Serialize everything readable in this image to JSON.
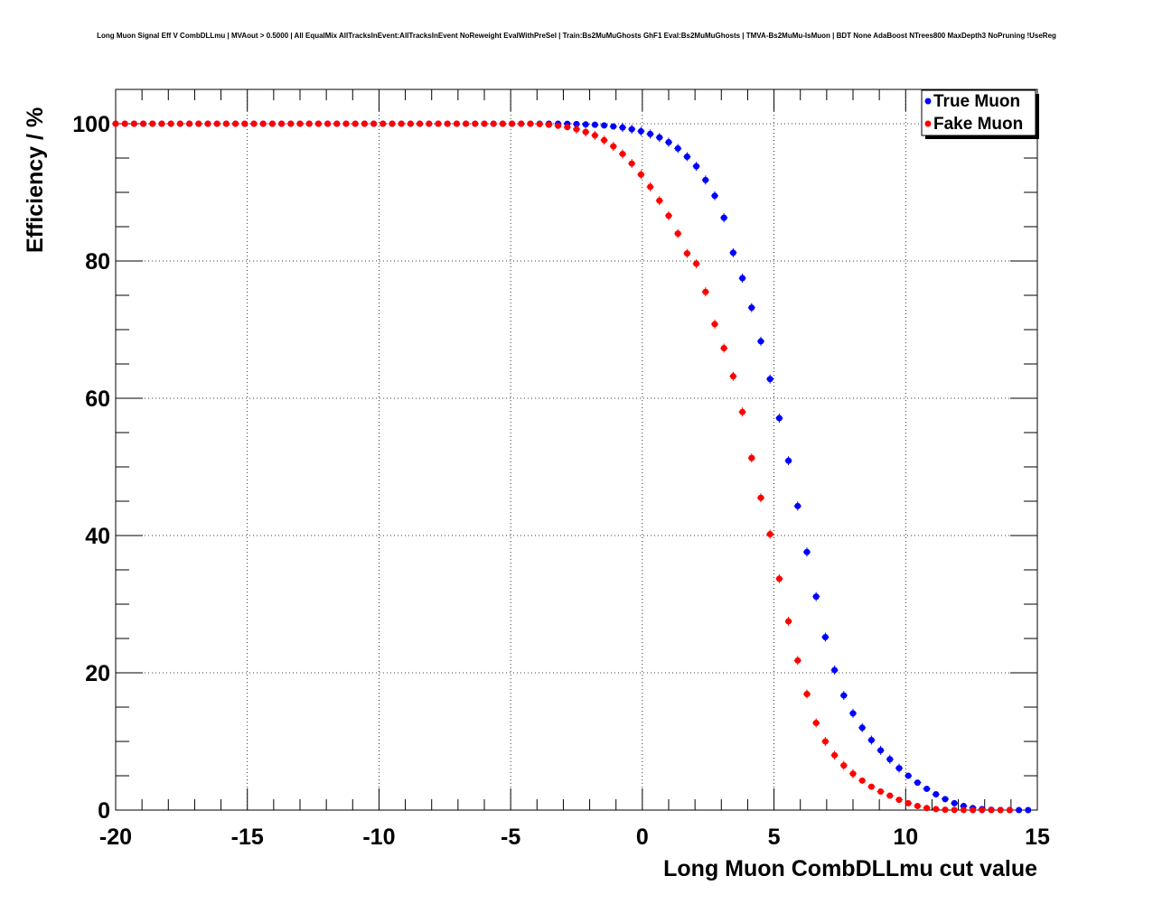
{
  "chart_data": {
    "type": "scatter",
    "title": "Long Muon Signal Eff V CombDLLmu | MVAout > 0.5000 | All EqualMix AllTracksInEvent:AllTracksInEvent NoReweight EvalWithPreSel | Train:Bs2MuMuGhosts GhF1 Eval:Bs2MuMuGhosts | TMVA-Bs2MuMu-IsMuon | BDT None AdaBoost NTrees800 MaxDepth3 NoPruning !UseReg",
    "xlabel": "Long Muon CombDLLmu cut value",
    "ylabel": "Efficiency / %",
    "xlim": [
      -20,
      15
    ],
    "ylim": [
      0,
      105
    ],
    "x_ticks": [
      -20,
      -15,
      -10,
      -5,
      0,
      5,
      10,
      15
    ],
    "x_tick_labels": [
      "-20",
      "-15",
      "-10",
      "-5",
      "0",
      "5",
      "10",
      "15"
    ],
    "y_ticks": [
      0,
      20,
      40,
      60,
      80,
      100
    ],
    "y_tick_labels": [
      "0",
      "20",
      "40",
      "60",
      "80",
      "100"
    ],
    "grid": true,
    "legend_position": "top-right",
    "series": [
      {
        "name": "True Muon",
        "color": "#0000ff",
        "x": [
          -20,
          -19.65,
          -19.3,
          -18.95,
          -18.6,
          -18.25,
          -17.9,
          -17.55,
          -17.2,
          -16.85,
          -16.5,
          -16.15,
          -15.8,
          -15.45,
          -15.1,
          -14.75,
          -14.4,
          -14.05,
          -13.7,
          -13.35,
          -13,
          -12.65,
          -12.3,
          -11.95,
          -11.6,
          -11.25,
          -10.9,
          -10.55,
          -10.2,
          -9.85,
          -9.5,
          -9.15,
          -8.8,
          -8.45,
          -8.1,
          -7.75,
          -7.4,
          -7.05,
          -6.7,
          -6.35,
          -6,
          -5.65,
          -5.3,
          -4.95,
          -4.6,
          -4.25,
          -3.9,
          -3.55,
          -3.2,
          -2.85,
          -2.5,
          -2.15,
          -1.8,
          -1.45,
          -1.1,
          -0.75,
          -0.4,
          -0.05,
          0.3,
          0.65,
          1,
          1.35,
          1.7,
          2.05,
          2.4,
          2.75,
          3.1,
          3.45,
          3.8,
          4.15,
          4.5,
          4.85,
          5.2,
          5.55,
          5.9,
          6.25,
          6.6,
          6.95,
          7.3,
          7.65,
          8,
          8.35,
          8.7,
          9.05,
          9.4,
          9.75,
          10.1,
          10.45,
          10.8,
          11.15,
          11.5,
          11.85,
          12.2,
          12.55,
          12.9,
          13.25,
          13.6,
          13.95,
          14.3,
          14.65
        ],
        "y": [
          100,
          100,
          100,
          100,
          100,
          100,
          100,
          100,
          100,
          100,
          100,
          100,
          100,
          100,
          100,
          100,
          100,
          100,
          100,
          100,
          100,
          100,
          100,
          100,
          100,
          100,
          100,
          100,
          100,
          100,
          100,
          100,
          100,
          100,
          100,
          100,
          100,
          100,
          100,
          100,
          100,
          100,
          100,
          100,
          100,
          100,
          100,
          100,
          100,
          99.98,
          99.95,
          99.9,
          99.85,
          99.75,
          99.6,
          99.45,
          99.2,
          98.9,
          98.5,
          98.0,
          97.3,
          96.4,
          95.2,
          93.8,
          91.8,
          89.5,
          86.3,
          81.2,
          77.5,
          73.2,
          68.3,
          62.8,
          57.1,
          50.9,
          44.3,
          37.6,
          31.1,
          25.2,
          20.4,
          16.7,
          14.1,
          12.0,
          10.2,
          8.7,
          7.4,
          6.1,
          5.0,
          4.0,
          3.1,
          2.3,
          1.6,
          1.0,
          0.6,
          0.3,
          0.15,
          0.05,
          0.02,
          0.01,
          0.0,
          0.0
        ]
      },
      {
        "name": "Fake Muon",
        "color": "#ff0000",
        "x": [
          -20,
          -19.65,
          -19.3,
          -18.95,
          -18.6,
          -18.25,
          -17.9,
          -17.55,
          -17.2,
          -16.85,
          -16.5,
          -16.15,
          -15.8,
          -15.45,
          -15.1,
          -14.75,
          -14.4,
          -14.05,
          -13.7,
          -13.35,
          -13,
          -12.65,
          -12.3,
          -11.95,
          -11.6,
          -11.25,
          -10.9,
          -10.55,
          -10.2,
          -9.85,
          -9.5,
          -9.15,
          -8.8,
          -8.45,
          -8.1,
          -7.75,
          -7.4,
          -7.05,
          -6.7,
          -6.35,
          -6,
          -5.65,
          -5.3,
          -4.95,
          -4.6,
          -4.25,
          -3.9,
          -3.55,
          -3.2,
          -2.85,
          -2.5,
          -2.15,
          -1.8,
          -1.45,
          -1.1,
          -0.75,
          -0.4,
          -0.05,
          0.3,
          0.65,
          1,
          1.35,
          1.7,
          2.05,
          2.4,
          2.75,
          3.1,
          3.45,
          3.8,
          4.15,
          4.5,
          4.85,
          5.2,
          5.55,
          5.9,
          6.25,
          6.6,
          6.95,
          7.3,
          7.65,
          8,
          8.35,
          8.7,
          9.05,
          9.4,
          9.75,
          10.1,
          10.45,
          10.8,
          11.15,
          11.5,
          11.85,
          12.2,
          12.55,
          12.9,
          13.25,
          13.6,
          13.95
        ],
        "y": [
          100,
          100,
          100,
          100,
          100,
          100,
          100,
          100,
          100,
          100,
          100,
          100,
          100,
          100,
          100,
          100,
          100,
          100,
          100,
          100,
          100,
          100,
          100,
          100,
          100,
          100,
          100,
          100,
          100,
          100,
          100,
          100,
          100,
          100,
          100,
          100,
          100,
          100,
          100,
          100,
          100,
          100,
          100,
          100,
          100,
          100,
          99.95,
          99.85,
          99.7,
          99.5,
          99.2,
          98.8,
          98.3,
          97.6,
          96.7,
          95.6,
          94.2,
          92.6,
          90.8,
          88.8,
          86.6,
          84.0,
          81.1,
          79.6,
          75.5,
          70.8,
          67.3,
          63.2,
          58.0,
          51.3,
          45.5,
          40.2,
          33.7,
          27.5,
          21.8,
          16.9,
          12.7,
          10.0,
          8.0,
          6.5,
          5.3,
          4.3,
          3.4,
          2.7,
          2.1,
          1.5,
          1.0,
          0.6,
          0.3,
          0.15,
          0.05,
          0.02,
          0.01,
          0.0,
          0.0,
          0.0,
          0.0,
          0.0
        ]
      }
    ]
  }
}
